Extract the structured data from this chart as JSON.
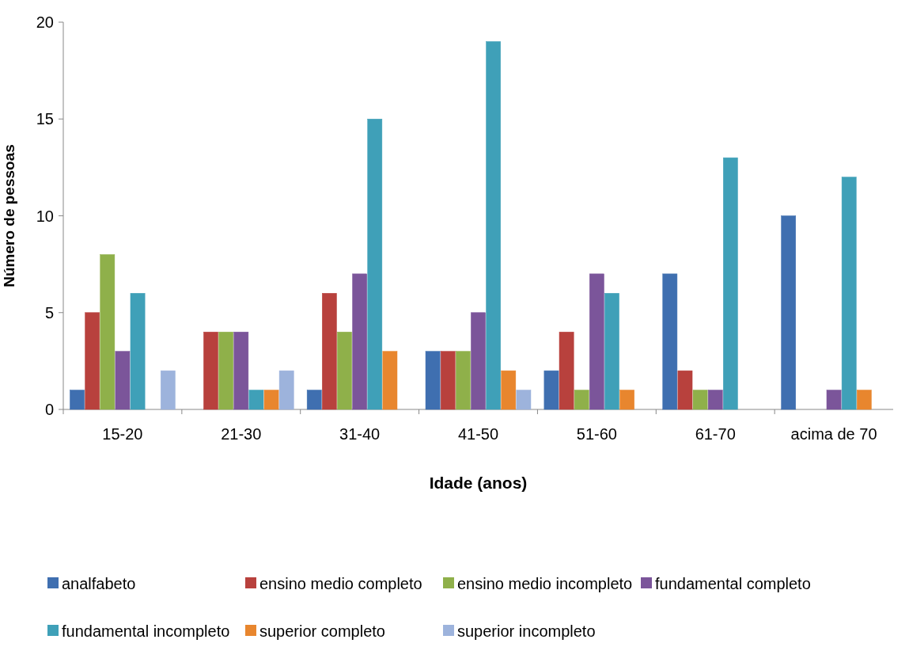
{
  "chart_data": {
    "type": "bar",
    "xlabel": "Idade (anos)",
    "ylabel": "Número de pessoas",
    "categories": [
      "15-20",
      "21-30",
      "31-40",
      "41-50",
      "51-60",
      "61-70",
      "acima de 70"
    ],
    "series": [
      {
        "name": "analfabeto",
        "color": "#3f6fb0",
        "values": [
          1,
          0,
          1,
          3,
          2,
          7,
          10
        ]
      },
      {
        "name": "ensino medio completo",
        "color": "#b8413d",
        "values": [
          5,
          4,
          6,
          3,
          4,
          2,
          0
        ]
      },
      {
        "name": "ensino medio incompleto",
        "color": "#8fb04a",
        "values": [
          8,
          4,
          4,
          3,
          1,
          1,
          0
        ]
      },
      {
        "name": "fundamental completo",
        "color": "#7b559a",
        "values": [
          3,
          4,
          7,
          5,
          7,
          1,
          1
        ]
      },
      {
        "name": "fundamental incompleto",
        "color": "#3fa0b8",
        "values": [
          6,
          1,
          15,
          19,
          6,
          13,
          12
        ]
      },
      {
        "name": "superior completo",
        "color": "#e8862e",
        "values": [
          0,
          1,
          3,
          2,
          1,
          0,
          1
        ]
      },
      {
        "name": "superior incompleto",
        "color": "#9db3dc",
        "values": [
          2,
          2,
          0,
          1,
          0,
          0,
          0
        ]
      }
    ],
    "ylim": [
      0,
      20
    ],
    "yticks": [
      0,
      5,
      10,
      15,
      20
    ],
    "grid": false,
    "legend": "bottom"
  }
}
